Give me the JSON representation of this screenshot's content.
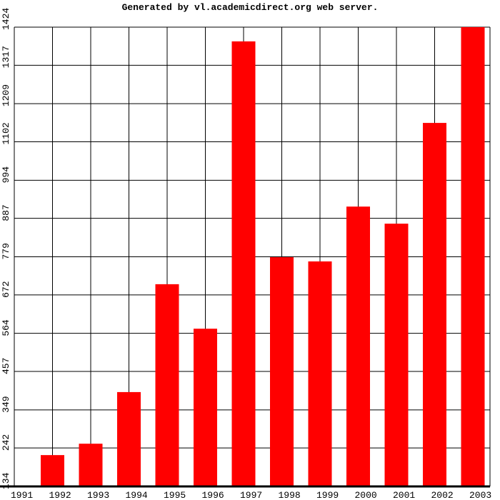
{
  "chart_data": {
    "type": "bar",
    "title": "Generated by vl.academicdirect.org web server.",
    "categories": [
      "1991",
      "1992",
      "1993",
      "1994",
      "1995",
      "1996",
      "1997",
      "1998",
      "1999",
      "2000",
      "2001",
      "2002",
      "2003"
    ],
    "values": [
      134,
      222,
      254,
      399,
      702,
      577,
      1384,
      778,
      766,
      920,
      872,
      1155,
      1424
    ],
    "color": "#ff0000",
    "ylim": [
      134,
      1424
    ],
    "yticks": [
      134,
      242,
      349,
      457,
      564,
      672,
      779,
      887,
      994,
      1102,
      1209,
      1317,
      1424
    ],
    "grid": true
  }
}
